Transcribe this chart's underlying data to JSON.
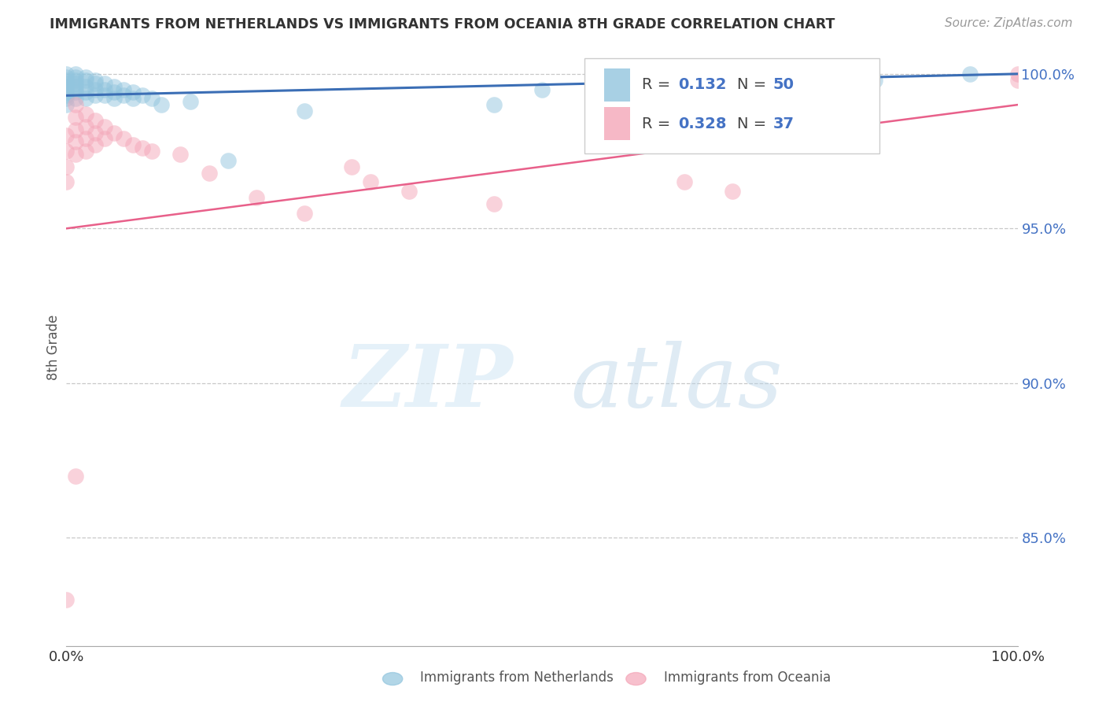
{
  "title": "IMMIGRANTS FROM NETHERLANDS VS IMMIGRANTS FROM OCEANIA 8TH GRADE CORRELATION CHART",
  "source": "Source: ZipAtlas.com",
  "ylabel": "8th Grade",
  "xlim": [
    0.0,
    1.0
  ],
  "ylim": [
    0.815,
    1.008
  ],
  "yticks": [
    0.85,
    0.9,
    0.95,
    1.0
  ],
  "ytick_labels": [
    "85.0%",
    "90.0%",
    "95.0%",
    "100.0%"
  ],
  "legend_blue_r": "0.132",
  "legend_blue_n": "50",
  "legend_pink_r": "0.328",
  "legend_pink_n": "37",
  "blue_color": "#92c5de",
  "pink_color": "#f4a6b8",
  "blue_line_color": "#3b6eb5",
  "pink_line_color": "#e8608a",
  "blue_scatter_x": [
    0.0,
    0.0,
    0.0,
    0.0,
    0.0,
    0.0,
    0.0,
    0.0,
    0.0,
    0.0,
    0.01,
    0.01,
    0.01,
    0.01,
    0.01,
    0.01,
    0.01,
    0.01,
    0.02,
    0.02,
    0.02,
    0.02,
    0.02,
    0.03,
    0.03,
    0.03,
    0.03,
    0.04,
    0.04,
    0.04,
    0.05,
    0.05,
    0.05,
    0.06,
    0.06,
    0.07,
    0.07,
    0.08,
    0.09,
    0.1,
    0.13,
    0.17,
    0.25,
    0.45,
    0.5,
    0.7,
    0.75,
    0.8,
    0.85,
    0.95
  ],
  "blue_scatter_y": [
    1.0,
    0.999,
    0.998,
    0.997,
    0.996,
    0.995,
    0.994,
    0.993,
    0.992,
    0.99,
    1.0,
    0.999,
    0.998,
    0.997,
    0.996,
    0.995,
    0.994,
    0.992,
    0.999,
    0.998,
    0.996,
    0.994,
    0.992,
    0.998,
    0.997,
    0.995,
    0.993,
    0.997,
    0.995,
    0.993,
    0.996,
    0.994,
    0.992,
    0.995,
    0.993,
    0.994,
    0.992,
    0.993,
    0.992,
    0.99,
    0.991,
    0.972,
    0.988,
    0.99,
    0.995,
    0.993,
    0.994,
    0.996,
    0.998,
    1.0
  ],
  "pink_scatter_x": [
    0.0,
    0.0,
    0.0,
    0.0,
    0.01,
    0.01,
    0.01,
    0.01,
    0.01,
    0.02,
    0.02,
    0.02,
    0.02,
    0.03,
    0.03,
    0.03,
    0.04,
    0.04,
    0.05,
    0.06,
    0.07,
    0.08,
    0.09,
    0.12,
    0.15,
    0.2,
    0.25,
    0.3,
    0.32,
    0.36,
    0.45,
    0.65,
    0.7,
    1.0,
    1.0,
    0.0,
    0.01
  ],
  "pink_scatter_y": [
    0.98,
    0.975,
    0.97,
    0.965,
    0.99,
    0.986,
    0.982,
    0.978,
    0.974,
    0.987,
    0.983,
    0.979,
    0.975,
    0.985,
    0.981,
    0.977,
    0.983,
    0.979,
    0.981,
    0.979,
    0.977,
    0.976,
    0.975,
    0.974,
    0.968,
    0.96,
    0.955,
    0.97,
    0.965,
    0.962,
    0.958,
    0.965,
    0.962,
    1.0,
    0.998,
    0.83,
    0.87
  ],
  "blue_line_x": [
    0.0,
    1.0
  ],
  "blue_line_y": [
    0.993,
    1.0
  ],
  "pink_line_x": [
    0.0,
    1.0
  ],
  "pink_line_y": [
    0.95,
    0.99
  ],
  "watermark_zip": "ZIP",
  "watermark_atlas": "atlas",
  "background_color": "#ffffff",
  "grid_color": "#c8c8c8"
}
